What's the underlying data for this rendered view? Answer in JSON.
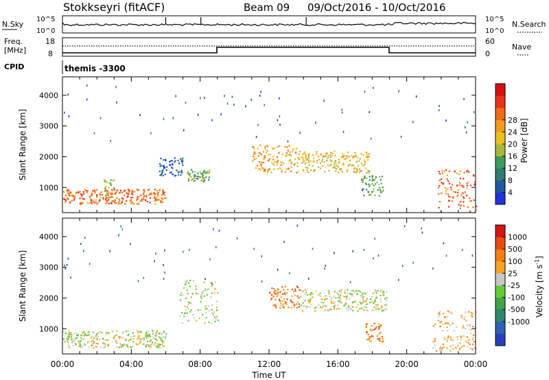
{
  "header": {
    "title": "Stokkseyri (fitACF)",
    "beam": "Beam 09",
    "date_range": "09/Oct/2016 - 10/Oct/2016"
  },
  "noise_panel": {
    "left_label": "N.Sky",
    "right_label": "N.Search",
    "left_ticks": [
      "10^5",
      "10^0"
    ],
    "right_ticks": [
      "10^5",
      "10^0"
    ]
  },
  "freq_panel": {
    "left_label_1": "Freq.",
    "left_label_2": "[MHz]",
    "right_label": "Nave",
    "left_ticks": [
      "18",
      "8"
    ],
    "right_ticks": [
      "60",
      "0"
    ]
  },
  "cpid": {
    "label": "CPID",
    "program": "themis -3300"
  },
  "chart_data": [
    {
      "type": "heatmap",
      "title": "",
      "xlabel": "Time UT",
      "ylabel": "Slant Range [km]",
      "x_ticks": [
        "00:00",
        "04:00",
        "08:00",
        "12:00",
        "16:00",
        "20:00",
        "00:00"
      ],
      "y_ticks": [
        "1000",
        "2000",
        "3000",
        "4000"
      ],
      "xlim": [
        0,
        24
      ],
      "ylim": [
        180,
        4600
      ],
      "colorbar_label": "Power [dB]",
      "colorbar_ticks": [
        "4",
        "8",
        "12",
        "16",
        "20",
        "24",
        "28"
      ],
      "colors": [
        "#2233dd",
        "#1e5aa0",
        "#2e7d6e",
        "#3c9a5a",
        "#a7b83a",
        "#e8c21d",
        "#f59a1d",
        "#f26a16",
        "#e8321a",
        "#d81010"
      ],
      "regions": [
        {
          "t0": 0.0,
          "t1": 6.0,
          "r0": 480,
          "r1": 960,
          "level": 7
        },
        {
          "t0": 2.4,
          "t1": 3.0,
          "r0": 700,
          "r1": 1300,
          "level": 4
        },
        {
          "t0": 5.6,
          "t1": 7.0,
          "r0": 1400,
          "r1": 2000,
          "level": 1
        },
        {
          "t0": 7.2,
          "t1": 8.5,
          "r0": 1200,
          "r1": 1600,
          "level": 3
        },
        {
          "t0": 11.0,
          "t1": 13.6,
          "r0": 1500,
          "r1": 2400,
          "level": 6
        },
        {
          "t0": 13.6,
          "t1": 17.8,
          "r0": 1500,
          "r1": 2200,
          "level": 5
        },
        {
          "t0": 17.3,
          "t1": 18.6,
          "r0": 700,
          "r1": 1400,
          "level": 3
        },
        {
          "t0": 21.8,
          "t1": 24.0,
          "r0": 200,
          "r1": 1600,
          "level": 7
        }
      ]
    },
    {
      "type": "heatmap",
      "title": "",
      "xlabel": "Time UT",
      "ylabel": "Slant Range [km]",
      "x_ticks": [
        "00:00",
        "04:00",
        "08:00",
        "12:00",
        "16:00",
        "20:00",
        "00:00"
      ],
      "y_ticks": [
        "1000",
        "2000",
        "3000",
        "4000"
      ],
      "xlim": [
        0,
        24
      ],
      "ylim": [
        180,
        4600
      ],
      "colorbar_label": "Velocity [m s",
      "colorbar_label_exponent": "-1",
      "colorbar_ticks": [
        "1000",
        "500",
        "100",
        "25",
        "-25",
        "-100",
        "-500",
        "-1000"
      ],
      "colors": [
        "#2a3fbe",
        "#2e63b4",
        "#2e8a6e",
        "#3fa34a",
        "#66cc33",
        "#c8c8c8",
        "#f5a623",
        "#f57f12",
        "#e84a10",
        "#d41616"
      ],
      "regions": [
        {
          "t0": 0.0,
          "t1": 6.0,
          "r0": 400,
          "r1": 960,
          "level": 5
        },
        {
          "t0": 6.8,
          "t1": 9.0,
          "r0": 1200,
          "r1": 2600,
          "level": 5
        },
        {
          "t0": 12.0,
          "t1": 13.8,
          "r0": 1700,
          "r1": 2400,
          "level": 7
        },
        {
          "t0": 13.8,
          "t1": 18.8,
          "r0": 1600,
          "r1": 2300,
          "level": 5
        },
        {
          "t0": 17.6,
          "t1": 18.6,
          "r0": 600,
          "r1": 1200,
          "level": 7
        },
        {
          "t0": 21.5,
          "t1": 24.0,
          "r0": 300,
          "r1": 1600,
          "level": 6
        }
      ]
    }
  ]
}
